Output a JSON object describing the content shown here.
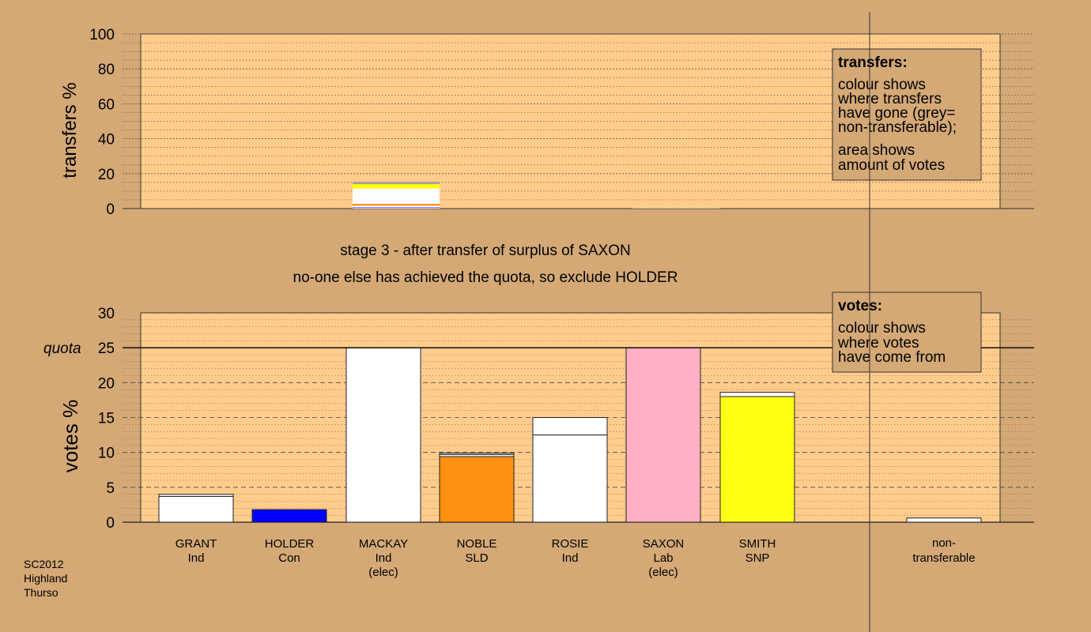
{
  "chart_data": [
    {
      "type": "bar",
      "ylabel": "transfers %",
      "ylim": [
        0,
        100
      ],
      "yticks": [
        "0",
        "20",
        "40",
        "60",
        "80",
        "100"
      ],
      "categories": [
        "GRANT",
        "HOLDER",
        "MACKAY",
        "NOBLE",
        "ROSIE",
        "SAXON",
        "SMITH"
      ],
      "stacks": [
        [],
        [],
        [
          {
            "value": 0.4,
            "color": "#FFFFFF"
          },
          {
            "value": 0.3,
            "color": "#0000FF"
          },
          {
            "value": 1.0,
            "color": "#FFFFFF"
          },
          {
            "value": 1.0,
            "color": "#FF8C00"
          },
          {
            "value": 7.3,
            "color": "#FFFFFF"
          },
          {
            "value": 1.5,
            "color": "#FFFFFF"
          },
          {
            "value": 2.5,
            "color": "#FFFF00"
          },
          {
            "value": 1.3,
            "color": "#A0A0A0"
          }
        ],
        [],
        [],
        [
          {
            "value": 0.5,
            "color": "#C8C8A0"
          }
        ],
        []
      ],
      "legend": {
        "title": "transfers:",
        "lines": [
          "colour shows",
          "where transfers",
          "have gone (grey=",
          "non-transferable);"
        ],
        "lines2": [
          "area shows",
          "amount of votes"
        ]
      }
    },
    {
      "type": "bar",
      "ylabel": "votes %",
      "ylim": [
        0,
        30
      ],
      "yticks": [
        "0",
        "5",
        "10",
        "15",
        "20",
        "25",
        "30"
      ],
      "quota": 25,
      "quota_label": "quota",
      "categories": [
        "GRANT",
        "HOLDER",
        "MACKAY",
        "NOBLE",
        "ROSIE",
        "SAXON",
        "SMITH",
        "non-transferable"
      ],
      "candidates": [
        {
          "name": "GRANT",
          "party": "Ind",
          "status": ""
        },
        {
          "name": "HOLDER",
          "party": "Con",
          "status": ""
        },
        {
          "name": "MACKAY",
          "party": "Ind",
          "status": "(elec)"
        },
        {
          "name": "NOBLE",
          "party": "SLD",
          "status": ""
        },
        {
          "name": "ROSIE",
          "party": "Ind",
          "status": ""
        },
        {
          "name": "SAXON",
          "party": "Lab",
          "status": "(elec)"
        },
        {
          "name": "SMITH",
          "party": "SNP",
          "status": ""
        }
      ],
      "nontransferable_label": [
        "non-",
        "transferable"
      ],
      "stacks": [
        [
          {
            "value": 3.7,
            "color": "#FFFFFF"
          },
          {
            "value": 0.3,
            "color": "#FFFFFF"
          }
        ],
        [
          {
            "value": 1.8,
            "color": "#0000FF"
          }
        ],
        [
          {
            "value": 25,
            "color": "#FFFFFF"
          }
        ],
        [
          {
            "value": 9.4,
            "color": "#FF9010"
          },
          {
            "value": 0.3,
            "color": "#FFFFFF"
          },
          {
            "value": 0.2,
            "color": "#FFFFFF"
          }
        ],
        [
          {
            "value": 12.5,
            "color": "#FFFFFF"
          },
          {
            "value": 2.5,
            "color": "#FFFFFF"
          }
        ],
        [
          {
            "value": 25,
            "color": "#FFB0C4"
          }
        ],
        [
          {
            "value": 18.0,
            "color": "#FFFF14"
          },
          {
            "value": 0.6,
            "color": "#FFFFFF"
          }
        ],
        [
          {
            "value": 0.6,
            "color": "#FFFFFF"
          }
        ]
      ],
      "legend": {
        "title": "votes:",
        "lines": [
          "colour shows",
          "where votes",
          "have come from"
        ]
      }
    }
  ],
  "stage_caption": "stage 3 - after transfer of surplus of SAXON",
  "stage_note": "no-one else has achieved the quota, so exclude HOLDER",
  "footer": {
    "code": "SC2012",
    "region": "Highland",
    "ward": "Thurso"
  },
  "colors": {
    "background": "#D4A976",
    "plot_background": "#FFCC8C"
  }
}
